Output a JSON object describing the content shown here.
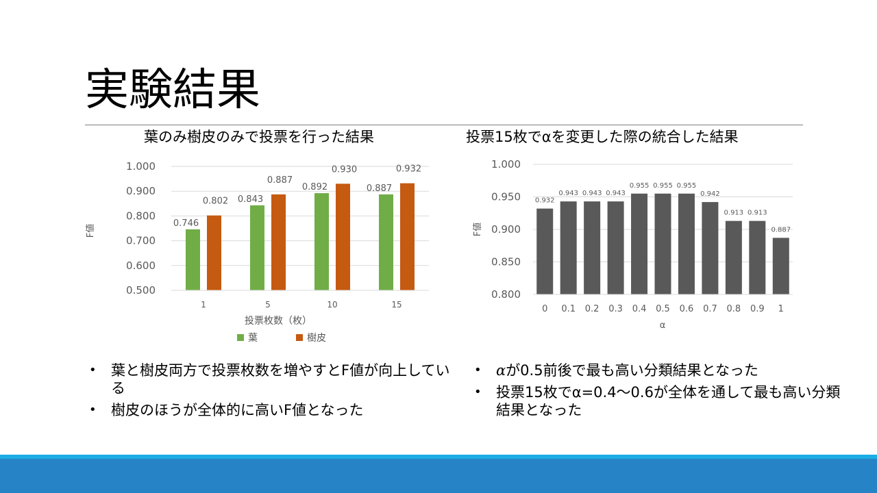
{
  "slide": {
    "title": "実験結果"
  },
  "bullets_left": [
    "葉と樹皮両方で投票枚数を増やすとF値が向上している",
    "樹皮のほうが全体的に高いF値となった"
  ],
  "bullets_right": [
    {
      "italic": "α",
      "rest": "が0.5前後で最も高い分類結果となった"
    },
    {
      "italic": "",
      "rest": "投票15枚でα=0.4～0.6が全体を通して最も高い分類結果となった"
    }
  ],
  "colors": {
    "leaf": "#70ad47",
    "bark": "#c55a11",
    "alpha_bar": "#595959",
    "footer_light": "#1cade4",
    "footer_dark": "#2683c6"
  },
  "chart_data": [
    {
      "type": "bar",
      "title": "葉のみ樹皮のみで投票を行った結果",
      "xlabel": "投票枚数（枚）",
      "ylabel": "F値",
      "categories": [
        "1",
        "5",
        "10",
        "15"
      ],
      "series": [
        {
          "name": "葉",
          "values": [
            0.746,
            0.843,
            0.892,
            0.887
          ]
        },
        {
          "name": "樹皮",
          "values": [
            0.802,
            0.887,
            0.93,
            0.932
          ]
        }
      ],
      "ylim": [
        0.5,
        1.0
      ],
      "yticks": [
        "0.500",
        "0.600",
        "0.700",
        "0.800",
        "0.900",
        "1.000"
      ],
      "grid": true,
      "legend": "bottom",
      "data_labels": true
    },
    {
      "type": "bar",
      "title": "投票15枚でαを変更した際の統合した結果",
      "xlabel": "α",
      "ylabel": "F値",
      "categories": [
        "0",
        "0.1",
        "0.2",
        "0.3",
        "0.4",
        "0.5",
        "0.6",
        "0.7",
        "0.8",
        "0.9",
        "1"
      ],
      "values": [
        0.932,
        0.943,
        0.943,
        0.943,
        0.955,
        0.955,
        0.955,
        0.942,
        0.913,
        0.913,
        0.887
      ],
      "ylim": [
        0.8,
        1.0
      ],
      "yticks": [
        "0.800",
        "0.850",
        "0.900",
        "0.950",
        "1.000"
      ],
      "grid": true,
      "legend": "none",
      "data_labels": true
    }
  ]
}
